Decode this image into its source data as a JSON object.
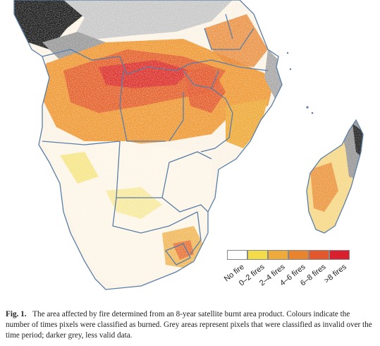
{
  "legend": {
    "items": [
      {
        "label": "No fire",
        "color": "#ffffff"
      },
      {
        "label": "0–2 fires",
        "color": "#f2dc4a"
      },
      {
        "label": "2–4 fires",
        "color": "#eeaa3a"
      },
      {
        "label": "4–6 fires",
        "color": "#e8842e"
      },
      {
        "label": "6–8 fires",
        "color": "#e2582c"
      },
      {
        "label": ">8 fires",
        "color": "#d8202e"
      }
    ]
  },
  "caption": {
    "figure": "Fig. 1.",
    "text": "The area affected by fire determined from an 8-year satellite burnt area product. Colours indicate the number of times pixels were classified as burned. Grey areas represent pixels that were classified as invalid over the time period; darker grey, less valid data."
  },
  "colors": {
    "border": "#5a7ea8",
    "invalid_dark": "#1f1f1f",
    "invalid_light": "#c8c8c8"
  }
}
